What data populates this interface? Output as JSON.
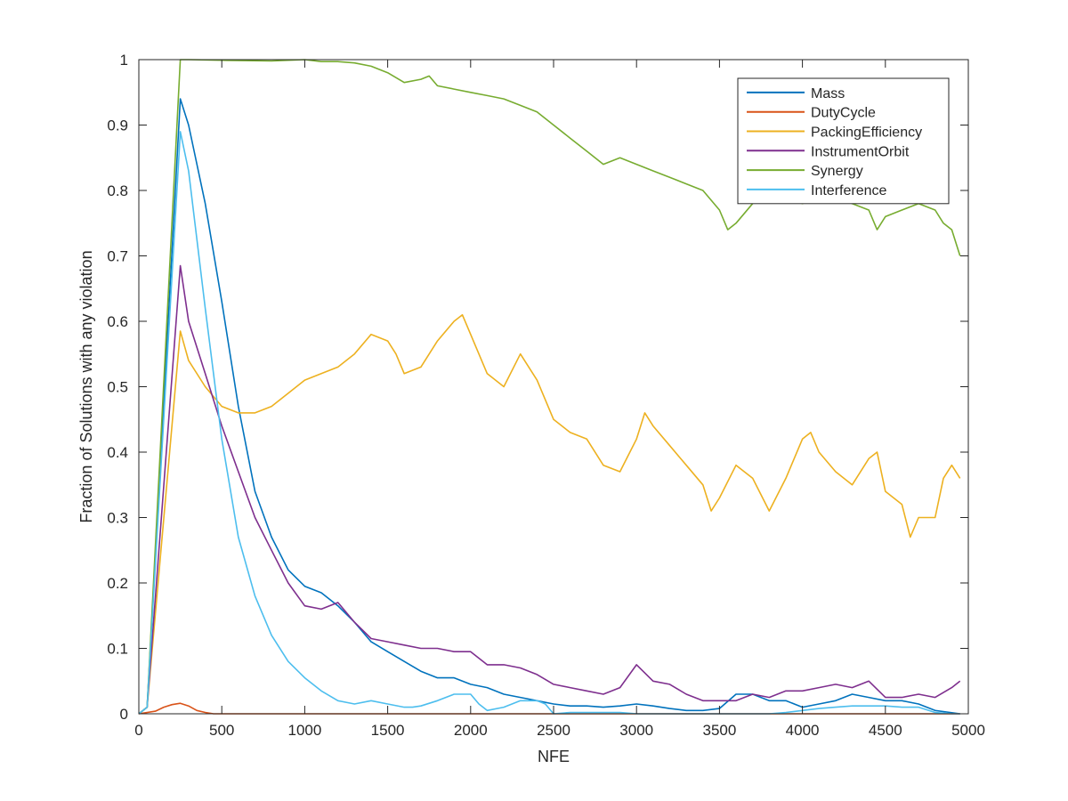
{
  "chart_data": {
    "type": "line",
    "title": "",
    "xlabel": "NFE",
    "ylabel": "Fraction of Solutions with any violation",
    "xlim": [
      0,
      5000
    ],
    "ylim": [
      0,
      1
    ],
    "xticks": [
      0,
      500,
      1000,
      1500,
      2000,
      2500,
      3000,
      3500,
      4000,
      4500,
      5000
    ],
    "yticks": [
      0,
      0.1,
      0.2,
      0.3,
      0.4,
      0.5,
      0.6,
      0.7,
      0.8,
      0.9,
      1
    ],
    "xtick_labels": [
      "0",
      "500",
      "1000",
      "1500",
      "2000",
      "2500",
      "3000",
      "3500",
      "4000",
      "4500",
      "5000"
    ],
    "ytick_labels": [
      "0",
      "0.1",
      "0.2",
      "0.3",
      "0.4",
      "0.5",
      "0.6",
      "0.7",
      "0.8",
      "0.9",
      "1"
    ],
    "grid": false,
    "legend_position": "top-right",
    "series": [
      {
        "name": "Mass",
        "color": "#0072BD",
        "x": [
          0,
          50,
          250,
          300,
          400,
          500,
          600,
          700,
          800,
          900,
          1000,
          1100,
          1200,
          1300,
          1400,
          1500,
          1600,
          1700,
          1800,
          1900,
          2000,
          2100,
          2200,
          2300,
          2400,
          2500,
          2600,
          2700,
          2800,
          2900,
          3000,
          3100,
          3200,
          3300,
          3400,
          3500,
          3600,
          3700,
          3800,
          3900,
          4000,
          4100,
          4200,
          4300,
          4400,
          4500,
          4600,
          4700,
          4800,
          4950
        ],
        "y": [
          0.0,
          0.01,
          0.94,
          0.9,
          0.78,
          0.63,
          0.47,
          0.34,
          0.27,
          0.22,
          0.195,
          0.185,
          0.165,
          0.14,
          0.11,
          0.095,
          0.08,
          0.065,
          0.055,
          0.055,
          0.045,
          0.04,
          0.03,
          0.025,
          0.02,
          0.015,
          0.012,
          0.012,
          0.01,
          0.012,
          0.015,
          0.012,
          0.008,
          0.005,
          0.005,
          0.008,
          0.03,
          0.03,
          0.02,
          0.02,
          0.01,
          0.015,
          0.02,
          0.03,
          0.025,
          0.02,
          0.02,
          0.015,
          0.005,
          0.0
        ]
      },
      {
        "name": "DutyCycle",
        "color": "#D95319",
        "x": [
          0,
          100,
          150,
          200,
          250,
          300,
          350,
          400,
          450,
          500,
          1000,
          2000,
          3000,
          4000,
          4950
        ],
        "y": [
          0.0,
          0.004,
          0.01,
          0.014,
          0.016,
          0.012,
          0.005,
          0.002,
          0.0,
          0.0,
          0.0,
          0.0,
          0.0,
          0.0,
          0.0
        ]
      },
      {
        "name": "PackingEfficiency",
        "color": "#EDB120",
        "x": [
          0,
          50,
          250,
          300,
          400,
          500,
          600,
          700,
          800,
          900,
          1000,
          1100,
          1200,
          1300,
          1400,
          1500,
          1550,
          1600,
          1700,
          1800,
          1900,
          1950,
          2000,
          2100,
          2200,
          2300,
          2400,
          2500,
          2600,
          2700,
          2800,
          2900,
          3000,
          3050,
          3100,
          3200,
          3300,
          3400,
          3450,
          3500,
          3600,
          3700,
          3800,
          3900,
          4000,
          4050,
          4100,
          4200,
          4300,
          4400,
          4450,
          4500,
          4600,
          4650,
          4700,
          4800,
          4850,
          4900,
          4950
        ],
        "y": [
          0.0,
          0.01,
          0.585,
          0.54,
          0.5,
          0.47,
          0.46,
          0.46,
          0.47,
          0.49,
          0.51,
          0.52,
          0.53,
          0.55,
          0.58,
          0.57,
          0.55,
          0.52,
          0.53,
          0.57,
          0.6,
          0.61,
          0.58,
          0.52,
          0.5,
          0.55,
          0.51,
          0.45,
          0.43,
          0.42,
          0.38,
          0.37,
          0.42,
          0.46,
          0.44,
          0.41,
          0.38,
          0.35,
          0.31,
          0.33,
          0.38,
          0.36,
          0.31,
          0.36,
          0.42,
          0.43,
          0.4,
          0.37,
          0.35,
          0.39,
          0.4,
          0.34,
          0.32,
          0.27,
          0.3,
          0.3,
          0.36,
          0.38,
          0.36
        ]
      },
      {
        "name": "InstrumentOrbit",
        "color": "#7E2F8E",
        "x": [
          0,
          50,
          250,
          300,
          400,
          500,
          600,
          700,
          800,
          900,
          1000,
          1100,
          1200,
          1300,
          1400,
          1500,
          1600,
          1700,
          1800,
          1900,
          2000,
          2100,
          2200,
          2300,
          2400,
          2500,
          2600,
          2700,
          2800,
          2900,
          3000,
          3100,
          3200,
          3300,
          3400,
          3500,
          3600,
          3700,
          3800,
          3900,
          4000,
          4100,
          4200,
          4300,
          4400,
          4500,
          4600,
          4700,
          4800,
          4900,
          4950
        ],
        "y": [
          0.0,
          0.01,
          0.685,
          0.6,
          0.52,
          0.44,
          0.37,
          0.3,
          0.25,
          0.2,
          0.165,
          0.16,
          0.17,
          0.14,
          0.115,
          0.11,
          0.105,
          0.1,
          0.1,
          0.095,
          0.095,
          0.075,
          0.075,
          0.07,
          0.06,
          0.045,
          0.04,
          0.035,
          0.03,
          0.04,
          0.075,
          0.05,
          0.045,
          0.03,
          0.02,
          0.02,
          0.02,
          0.03,
          0.025,
          0.035,
          0.035,
          0.04,
          0.045,
          0.04,
          0.05,
          0.025,
          0.025,
          0.03,
          0.025,
          0.04,
          0.05
        ]
      },
      {
        "name": "Synergy",
        "color": "#77AC30",
        "x": [
          0,
          50,
          250,
          300,
          500,
          800,
          1000,
          1100,
          1200,
          1300,
          1400,
          1500,
          1600,
          1700,
          1750,
          1800,
          1900,
          2000,
          2100,
          2200,
          2300,
          2400,
          2500,
          2600,
          2700,
          2800,
          2900,
          3000,
          3100,
          3200,
          3300,
          3400,
          3500,
          3550,
          3600,
          3700,
          3800,
          3900,
          4000,
          4100,
          4200,
          4300,
          4400,
          4450,
          4500,
          4600,
          4700,
          4800,
          4850,
          4900,
          4950
        ],
        "y": [
          0.0,
          0.01,
          1.0,
          1.0,
          0.999,
          0.998,
          1.0,
          0.997,
          0.997,
          0.995,
          0.99,
          0.98,
          0.965,
          0.97,
          0.975,
          0.96,
          0.955,
          0.95,
          0.945,
          0.94,
          0.93,
          0.92,
          0.9,
          0.88,
          0.86,
          0.84,
          0.85,
          0.84,
          0.83,
          0.82,
          0.81,
          0.8,
          0.77,
          0.74,
          0.75,
          0.78,
          0.8,
          0.79,
          0.78,
          0.79,
          0.79,
          0.78,
          0.77,
          0.74,
          0.76,
          0.77,
          0.78,
          0.77,
          0.75,
          0.74,
          0.7
        ]
      },
      {
        "name": "Interference",
        "color": "#4DBEEE",
        "x": [
          0,
          50,
          250,
          300,
          400,
          500,
          600,
          700,
          800,
          900,
          1000,
          1100,
          1200,
          1300,
          1400,
          1500,
          1600,
          1650,
          1700,
          1800,
          1900,
          2000,
          2050,
          2100,
          2200,
          2300,
          2400,
          2450,
          2500,
          2600,
          2700,
          2800,
          2900,
          3000,
          3100,
          3200,
          3300,
          3400,
          3500,
          3600,
          3700,
          3800,
          3900,
          4000,
          4100,
          4200,
          4300,
          4400,
          4500,
          4600,
          4700,
          4800,
          4900,
          4950
        ],
        "y": [
          0.0,
          0.01,
          0.89,
          0.83,
          0.62,
          0.42,
          0.27,
          0.18,
          0.12,
          0.08,
          0.055,
          0.035,
          0.02,
          0.015,
          0.02,
          0.015,
          0.01,
          0.01,
          0.012,
          0.02,
          0.03,
          0.03,
          0.015,
          0.005,
          0.01,
          0.02,
          0.02,
          0.015,
          0.0,
          0.002,
          0.002,
          0.002,
          0.002,
          0.0,
          0.0,
          0.0,
          0.0,
          0.0,
          0.0,
          0.0,
          0.0,
          0.0,
          0.002,
          0.005,
          0.008,
          0.01,
          0.012,
          0.012,
          0.012,
          0.01,
          0.01,
          0.002,
          0.0,
          0.0
        ]
      }
    ]
  }
}
